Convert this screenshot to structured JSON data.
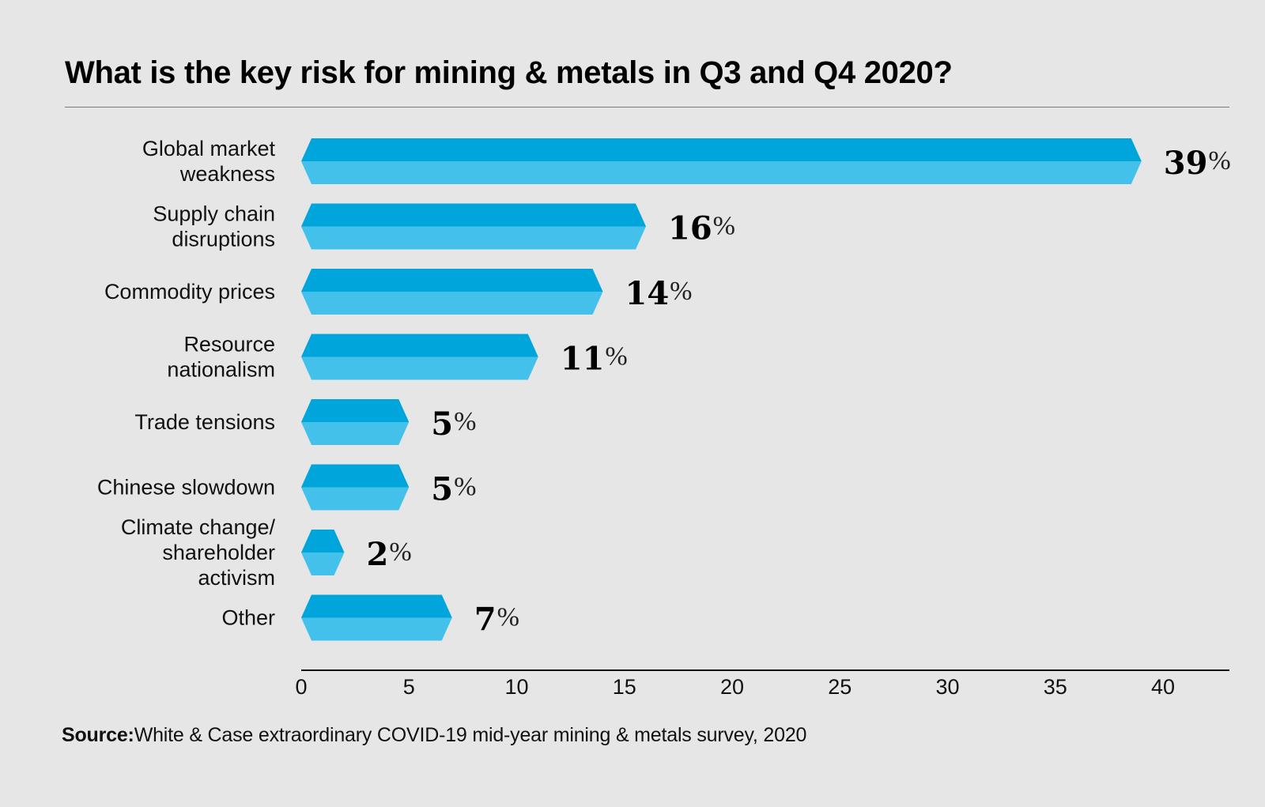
{
  "header": {
    "title": "What is the key risk for mining & metals in Q3 and Q4 2020?"
  },
  "footer": {
    "source_label": "Source:",
    "source_text": "White & Case extraordinary COVID-19 mid-year mining & metals survey, 2020"
  },
  "colors": {
    "bar_top": "#00a5dc",
    "bar_bottom": "#43c1ea",
    "background": "#e6e6e6",
    "axis": "#111111"
  },
  "chart_data": {
    "type": "bar",
    "orientation": "horizontal",
    "title": "What is the key risk for mining & metals in Q3 and Q4 2020?",
    "xlabel": "",
    "ylabel": "",
    "categories": [
      [
        "Global market",
        "weakness"
      ],
      [
        "Supply chain",
        "disruptions"
      ],
      [
        "Commodity prices"
      ],
      [
        "Resource",
        "nationalism"
      ],
      [
        "Trade tensions"
      ],
      [
        "Chinese slowdown"
      ],
      [
        "Climate change/",
        "shareholder",
        "activism"
      ],
      [
        "Other"
      ]
    ],
    "values": [
      39,
      16,
      14,
      11,
      5,
      5,
      2,
      7
    ],
    "value_suffix": "%",
    "xlim": [
      0,
      43
    ],
    "xticks": [
      0,
      5,
      10,
      15,
      20,
      25,
      30,
      35,
      40
    ],
    "grid": false,
    "legend": "none"
  }
}
